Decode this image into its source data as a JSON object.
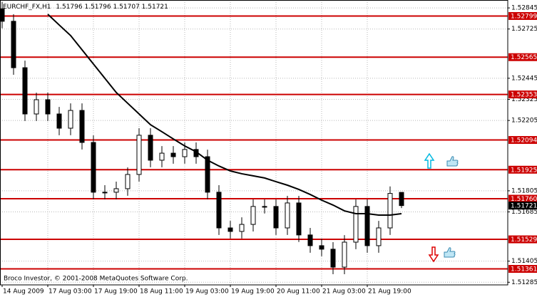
{
  "chart_data": {
    "type": "candlestick",
    "title": "EURCHF_FX,H1",
    "footer": "Broco Investor, © 2001-2008 MetaQuotes Software Corp.",
    "categories": [
      "14 Aug 2009",
      null,
      null,
      null,
      "17 Aug 03:00",
      null,
      null,
      null,
      "17 Aug 19:00",
      null,
      null,
      null,
      "18 Aug 11:00",
      null,
      null,
      null,
      "19 Aug 03:00",
      null,
      null,
      null,
      "19 Aug 19:00",
      null,
      null,
      null,
      "20 Aug 11:00",
      null,
      null,
      null,
      "21 Aug 03:00",
      null,
      null,
      null,
      "21 Aug 19:00",
      null,
      null,
      null
    ],
    "open": [
      1.5284,
      1.52769,
      1.52505,
      1.52242,
      1.52323,
      1.52242,
      1.52161,
      1.52262,
      1.5208,
      1.51797,
      1.51797,
      1.51817,
      1.51898,
      1.52121,
      1.51979,
      1.52019,
      1.51999,
      1.5204,
      1.51999,
      1.51797,
      1.51594,
      1.51574,
      1.51614,
      1.51716,
      1.51716,
      1.51594,
      1.51736,
      1.51554,
      1.51493,
      1.51473,
      1.51371,
      1.51513,
      1.51716,
      1.51493,
      1.51594,
      1.51796
    ],
    "high": [
      1.5288,
      1.52809,
      1.52545,
      1.52363,
      1.52363,
      1.52282,
      1.52302,
      1.52302,
      1.5212,
      1.51837,
      1.51857,
      1.51938,
      1.52161,
      1.52161,
      1.52059,
      1.52059,
      1.5208,
      1.5208,
      1.52039,
      1.51837,
      1.51634,
      1.51654,
      1.51756,
      1.51756,
      1.51756,
      1.51776,
      1.51776,
      1.51594,
      1.51533,
      1.51513,
      1.51553,
      1.51756,
      1.51756,
      1.51634,
      1.5183,
      1.51796
    ],
    "low": [
      1.52729,
      1.52465,
      1.52202,
      1.52202,
      1.52202,
      1.52121,
      1.52121,
      1.5204,
      1.51757,
      1.51757,
      1.51757,
      1.51777,
      1.51858,
      1.51939,
      1.51939,
      1.51959,
      1.51959,
      1.51959,
      1.51757,
      1.51554,
      1.51534,
      1.51534,
      1.51574,
      1.51676,
      1.51554,
      1.51554,
      1.51514,
      1.51453,
      1.51433,
      1.51331,
      1.51331,
      1.51473,
      1.51453,
      1.51453,
      1.51554,
      1.51707
    ],
    "close": [
      1.52769,
      1.52505,
      1.52242,
      1.52323,
      1.52242,
      1.52161,
      1.52262,
      1.5208,
      1.51797,
      1.51797,
      1.51817,
      1.51898,
      1.52121,
      1.51979,
      1.52019,
      1.51999,
      1.5204,
      1.51999,
      1.51797,
      1.51594,
      1.51574,
      1.51614,
      1.51716,
      1.51716,
      1.51594,
      1.51736,
      1.51554,
      1.51493,
      1.51473,
      1.51371,
      1.51513,
      1.51716,
      1.51493,
      1.51594,
      1.5179,
      1.51721
    ],
    "moving_average": {
      "color": "#000000",
      "values": [
        null,
        null,
        null,
        null,
        1.52809,
        1.52748,
        1.52688,
        1.52607,
        1.52526,
        1.52445,
        1.52364,
        1.52303,
        1.52242,
        1.52181,
        1.52141,
        1.521,
        1.5206,
        1.52027,
        1.51979,
        1.51946,
        1.51918,
        1.51902,
        1.5189,
        1.51878,
        1.51857,
        1.51837,
        1.51813,
        1.51784,
        1.51752,
        1.51724,
        1.51691,
        1.51675,
        1.51675,
        1.51667,
        1.51667,
        1.51675
      ]
    },
    "levels": [
      1.52799,
      1.52565,
      1.52353,
      1.52094,
      1.51925,
      {
        "value": 1.5176,
        "label": "1.51760"
      },
      1.51529,
      1.51361
    ],
    "level_color": "#cc0000",
    "ylim": [
      1.5127,
      1.5289
    ],
    "yticks": [
      1.52845,
      1.52725,
      1.52445,
      1.52325,
      1.52205,
      1.51805,
      1.51685,
      1.51405,
      1.51285
    ],
    "grid": true
  }
}
